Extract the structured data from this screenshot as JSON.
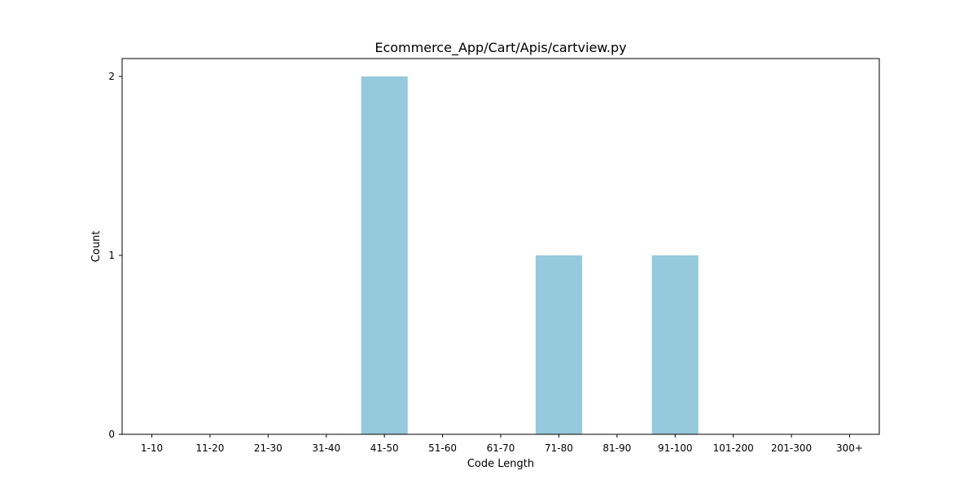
{
  "chart_data": {
    "type": "bar",
    "title": "Ecommerce_App/Cart/Apis/cartview.py",
    "xlabel": "Code Length",
    "ylabel": "Count",
    "categories": [
      "1-10",
      "11-20",
      "21-30",
      "31-40",
      "41-50",
      "51-60",
      "61-70",
      "71-80",
      "81-90",
      "91-100",
      "101-200",
      "201-300",
      "300+"
    ],
    "values": [
      0,
      0,
      0,
      0,
      2,
      0,
      0,
      1,
      0,
      1,
      0,
      0,
      0
    ],
    "yticks": [
      0,
      1,
      2
    ],
    "ylim": [
      0,
      2.1
    ],
    "grid": false,
    "bar_color": "#96c9dc"
  }
}
